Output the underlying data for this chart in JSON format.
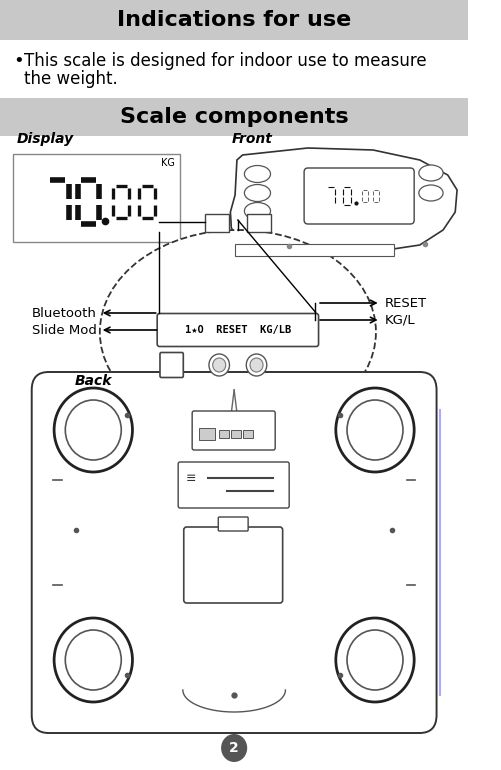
{
  "title1": "Indications for use",
  "title2": "Scale components",
  "bullet_text_line1": "This scale is designed for indoor use to measure",
  "bullet_text_line2": "the weight.",
  "label_display": "Display",
  "label_front": "Front",
  "label_back": "Back",
  "label_bluetooth": "Bluetooth",
  "label_slide_mod": "Slide Mod",
  "label_reset": "RESET",
  "label_kgl": "KG/L",
  "header_bg": "#c8c8c8",
  "page_num": "2",
  "bg_color": "#ffffff",
  "panel_text": "1★O  RESET  KG/LB"
}
